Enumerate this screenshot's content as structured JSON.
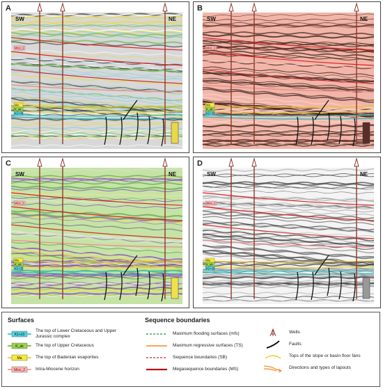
{
  "panels": [
    {
      "label": "A",
      "left": "SW",
      "right": "NE",
      "horizons": [
        "Mioc_2",
        "Ma",
        "K_ak",
        "K1+J3"
      ]
    },
    {
      "label": "B",
      "left": "SW",
      "right": "NE",
      "horizons": [
        "Mioc_2",
        "Ma",
        "K_ak",
        "K1+J3"
      ]
    },
    {
      "label": "C",
      "left": "SW",
      "right": "NE",
      "horizons": [
        "Mioc_2",
        "Ma",
        "K_ak",
        "K1+J3"
      ]
    },
    {
      "label": "D",
      "left": "SW",
      "right": "NE",
      "horizons": [
        "Mioc_2",
        "Ma",
        "K_ak",
        "K1+J3"
      ]
    }
  ],
  "legend": {
    "surfaces_title": "Surfaces",
    "surfaces": [
      {
        "tag": "K1+J3",
        "text": "The top of Lower Cretaceous and Upper Jurassic complex"
      },
      {
        "tag": "K_ak",
        "text": "The top of Upper Cretaceous"
      },
      {
        "tag": "Ma",
        "text": "The top of Badenian evaporites"
      },
      {
        "tag": "Mioc_2",
        "text": "Intra-Miocene horizon"
      }
    ],
    "sequence_title": "Sequence boundaries",
    "sequence": [
      "Maximum flooding surfaces (mfs)",
      "Maximum regressive surfaces (TS)",
      "Sequence boundaries (SB)",
      "Megasequence boundaries (MS)"
    ],
    "symbols": [
      "Wells",
      "Faults",
      "Tops of the slope or basin floor fans",
      "Directions and types of lapouts"
    ]
  }
}
